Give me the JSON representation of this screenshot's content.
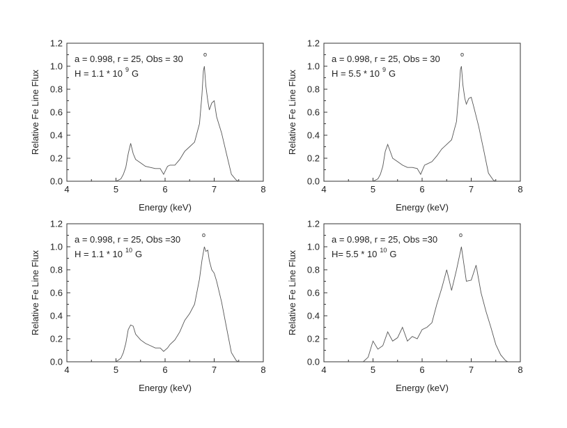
{
  "chart_data": [
    {
      "type": "line",
      "xlabel": "Energy (keV)",
      "ylabel": "Relative Fe Line Flux",
      "xlim": [
        4,
        8
      ],
      "ylim": [
        0,
        1.2
      ],
      "xticks": [
        "4",
        "5",
        "6",
        "7",
        "8"
      ],
      "yticks": [
        "0.0",
        "0.2",
        "0.4",
        "0.6",
        "0.8",
        "1.0",
        "1.2"
      ],
      "annotation": {
        "line1": "a = 0.998, r = 25, Obs = 30",
        "degree": "o",
        "line2_pre": "H = 1.1 * 10",
        "exponent": "9",
        "line2_post": "G"
      },
      "series": [
        {
          "x": [
            5.0,
            5.1,
            5.15,
            5.2,
            5.25,
            5.3,
            5.35,
            5.4,
            5.5,
            5.6,
            5.7,
            5.8,
            5.9,
            5.97,
            6.05,
            6.1,
            6.2,
            6.3,
            6.4,
            6.5,
            6.6,
            6.7,
            6.75,
            6.78,
            6.8,
            6.83,
            6.87,
            6.9,
            6.95,
            7.0,
            7.05,
            7.15,
            7.25,
            7.35,
            7.45,
            7.5
          ],
          "y": [
            0.0,
            0.02,
            0.06,
            0.12,
            0.24,
            0.33,
            0.24,
            0.19,
            0.16,
            0.13,
            0.12,
            0.11,
            0.11,
            0.06,
            0.13,
            0.14,
            0.14,
            0.19,
            0.26,
            0.3,
            0.34,
            0.5,
            0.75,
            0.96,
            1.0,
            0.83,
            0.7,
            0.62,
            0.68,
            0.7,
            0.56,
            0.42,
            0.24,
            0.06,
            0.01,
            0.0
          ]
        }
      ]
    },
    {
      "type": "line",
      "xlabel": "Energy (keV)",
      "ylabel": "Relative Fe Line Flux",
      "xlim": [
        4,
        8
      ],
      "ylim": [
        0,
        1.2
      ],
      "xticks": [
        "4",
        "5",
        "6",
        "7",
        "8"
      ],
      "yticks": [
        "0.0",
        "0.2",
        "0.4",
        "0.6",
        "0.8",
        "1.0",
        "1.2"
      ],
      "annotation": {
        "line1": "a = 0.998, r = 25, Obs = 30",
        "degree": "o",
        "line2_pre": "H = 5.5 * 10",
        "exponent": "9",
        "line2_post": "G"
      },
      "series": [
        {
          "x": [
            5.0,
            5.1,
            5.15,
            5.2,
            5.25,
            5.3,
            5.35,
            5.4,
            5.5,
            5.6,
            5.7,
            5.8,
            5.9,
            5.97,
            6.05,
            6.1,
            6.2,
            6.3,
            6.4,
            6.5,
            6.6,
            6.7,
            6.75,
            6.78,
            6.8,
            6.83,
            6.87,
            6.9,
            6.95,
            7.0,
            7.05,
            7.15,
            7.25,
            7.35,
            7.45,
            7.5
          ],
          "y": [
            0.0,
            0.02,
            0.06,
            0.13,
            0.26,
            0.32,
            0.26,
            0.2,
            0.17,
            0.14,
            0.12,
            0.12,
            0.11,
            0.06,
            0.14,
            0.15,
            0.17,
            0.22,
            0.28,
            0.32,
            0.36,
            0.52,
            0.78,
            0.97,
            1.0,
            0.84,
            0.72,
            0.67,
            0.72,
            0.73,
            0.65,
            0.48,
            0.28,
            0.07,
            0.01,
            0.0
          ]
        }
      ]
    },
    {
      "type": "line",
      "xlabel": "Energy (keV)",
      "ylabel": "Relative Fe Line Flux",
      "xlim": [
        4,
        8
      ],
      "ylim": [
        0,
        1.2
      ],
      "xticks": [
        "4",
        "5",
        "6",
        "7",
        "8"
      ],
      "yticks": [
        "0.0",
        "0.2",
        "0.4",
        "0.6",
        "0.8",
        "1.0",
        "1.2"
      ],
      "annotation": {
        "line1": "a = 0.998, r = 25, Obs =30",
        "degree": "o",
        "line2_pre": "H = 1.1 * 10",
        "exponent": "10",
        "line2_post": "G"
      },
      "series": [
        {
          "x": [
            5.0,
            5.1,
            5.15,
            5.2,
            5.25,
            5.3,
            5.35,
            5.4,
            5.5,
            5.6,
            5.7,
            5.8,
            5.9,
            5.97,
            6.05,
            6.1,
            6.2,
            6.3,
            6.4,
            6.5,
            6.6,
            6.7,
            6.75,
            6.8,
            6.83,
            6.87,
            6.9,
            6.95,
            7.0,
            7.05,
            7.15,
            7.25,
            7.35,
            7.45,
            7.5
          ],
          "y": [
            0.0,
            0.03,
            0.08,
            0.16,
            0.28,
            0.32,
            0.31,
            0.24,
            0.19,
            0.16,
            0.14,
            0.12,
            0.12,
            0.09,
            0.12,
            0.15,
            0.19,
            0.26,
            0.36,
            0.42,
            0.5,
            0.72,
            0.88,
            1.0,
            0.96,
            0.97,
            0.88,
            0.8,
            0.77,
            0.7,
            0.52,
            0.3,
            0.08,
            0.01,
            0.0
          ]
        }
      ]
    },
    {
      "type": "line",
      "xlabel": "Energy (keV)",
      "ylabel": "Relative Fe Line Flux",
      "xlim": [
        4,
        8
      ],
      "ylim": [
        0,
        1.2
      ],
      "xticks": [
        "4",
        "5",
        "6",
        "7",
        "8"
      ],
      "yticks": [
        "0.0",
        "0.2",
        "0.4",
        "0.6",
        "0.8",
        "1.0",
        "1.2"
      ],
      "annotation": {
        "line1": "a = 0.998, r = 25, Obs =30",
        "degree": "o",
        "line2_pre": "H= 5.5 * 10",
        "exponent": "10",
        "line2_post": "G"
      },
      "series": [
        {
          "x": [
            4.8,
            4.9,
            5.0,
            5.1,
            5.2,
            5.3,
            5.4,
            5.5,
            5.6,
            5.7,
            5.8,
            5.9,
            6.0,
            6.1,
            6.2,
            6.3,
            6.4,
            6.5,
            6.6,
            6.7,
            6.8,
            6.9,
            7.0,
            7.1,
            7.2,
            7.3,
            7.4,
            7.5,
            7.6,
            7.7,
            7.75
          ],
          "y": [
            0.0,
            0.04,
            0.18,
            0.11,
            0.14,
            0.26,
            0.18,
            0.21,
            0.3,
            0.18,
            0.22,
            0.2,
            0.28,
            0.3,
            0.34,
            0.5,
            0.64,
            0.8,
            0.62,
            0.8,
            1.0,
            0.7,
            0.71,
            0.84,
            0.6,
            0.44,
            0.3,
            0.15,
            0.06,
            0.01,
            0.0
          ]
        }
      ]
    }
  ]
}
